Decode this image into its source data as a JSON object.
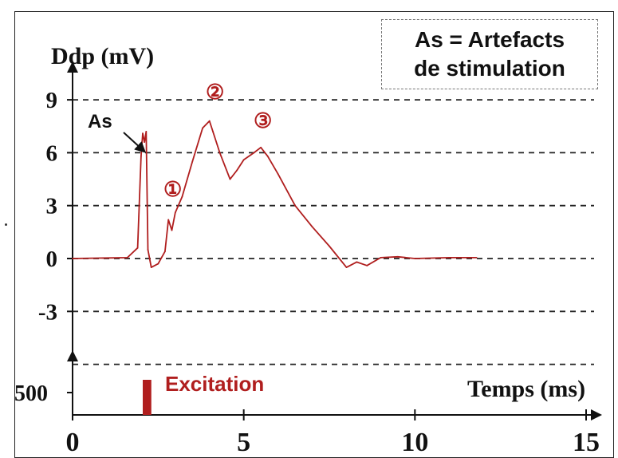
{
  "chart_data": {
    "type": "line",
    "title": "",
    "ylabel": "Ddp (mV)",
    "xlabel": "Temps (ms)",
    "xlim": [
      0,
      15
    ],
    "ylim": [
      -6,
      10
    ],
    "x_ticks": [
      "0",
      "5",
      "10",
      "15"
    ],
    "y_ticks": [
      "9",
      "6",
      "3",
      "0",
      "-3"
    ],
    "y_tick_values": [
      9,
      6,
      3,
      0,
      -3
    ],
    "grid": "horizontal dashed",
    "legend_box": {
      "line1": "As = Artefacts",
      "line2": "de stimulation"
    },
    "annotations": {
      "artefact": "As",
      "peak1": "①",
      "peak2": "②",
      "peak3": "③"
    },
    "series": [
      {
        "color": "#b01e1e",
        "x": [
          0,
          1.6,
          1.9,
          2.0,
          2.05,
          2.1,
          2.15,
          2.2,
          2.3,
          2.5,
          2.7,
          2.8,
          2.9,
          3.0,
          3.2,
          3.5,
          3.8,
          4.0,
          4.1,
          4.3,
          4.6,
          4.8,
          5.0,
          5.3,
          5.5,
          5.7,
          6.0,
          6.5,
          7.0,
          7.5,
          8.0,
          8.3,
          8.6,
          9.0,
          9.5,
          10.0,
          11.0,
          11.8
        ],
        "y": [
          0,
          0.05,
          0.6,
          5.8,
          7.1,
          6.6,
          7.2,
          0.5,
          -0.5,
          -0.3,
          0.4,
          2.2,
          1.6,
          2.6,
          3.5,
          5.5,
          7.4,
          7.8,
          7.2,
          6.0,
          4.5,
          5.0,
          5.6,
          6.0,
          6.3,
          5.8,
          4.8,
          3.0,
          1.8,
          0.7,
          -0.5,
          -0.2,
          -0.4,
          0.05,
          0.1,
          0.0,
          0.05,
          0.05
        ]
      }
    ],
    "lower_axis": {
      "tick_label": "500",
      "bar_label": "Excitation",
      "bar_x": [
        2.05,
        2.3
      ],
      "bar_color": "#b01e1e"
    }
  }
}
